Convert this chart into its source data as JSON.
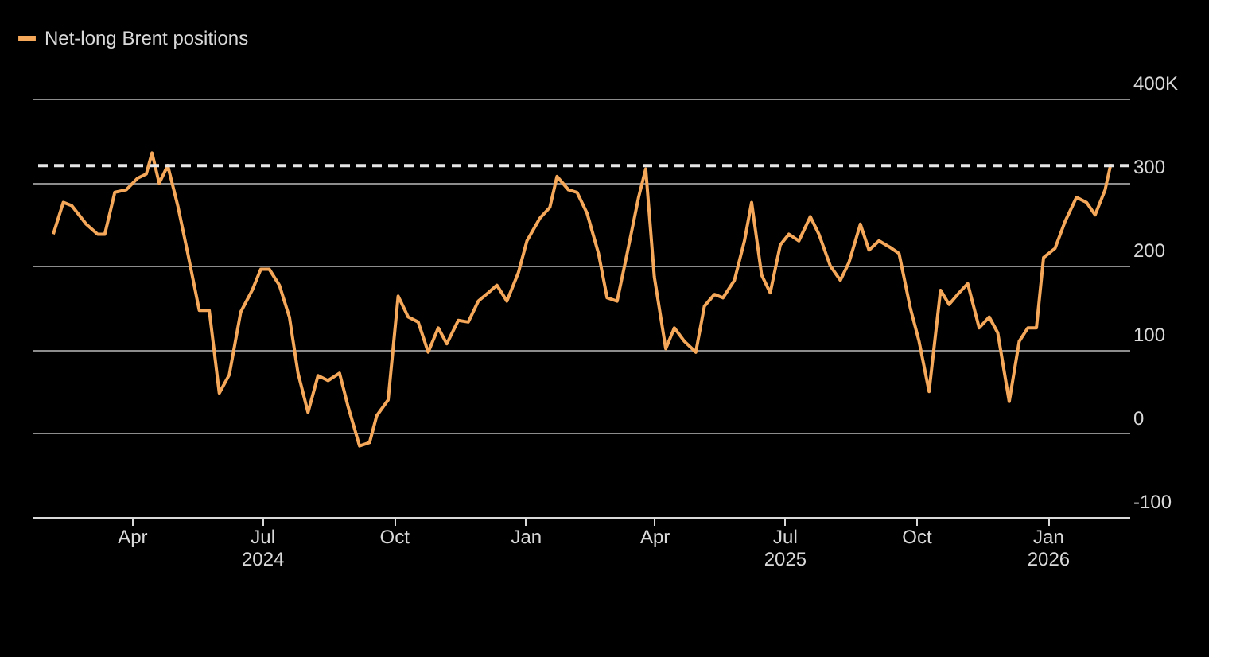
{
  "chart_data": {
    "type": "line",
    "x": [
      "2024-02-06",
      "2024-02-13",
      "2024-02-19",
      "2024-02-29",
      "2024-03-08",
      "2024-03-13",
      "2024-03-20",
      "2024-03-28",
      "2024-04-05",
      "2024-04-11",
      "2024-04-15",
      "2024-04-20",
      "2024-04-26",
      "2024-05-03",
      "2024-05-10",
      "2024-05-18",
      "2024-05-25",
      "2024-06-01",
      "2024-06-08",
      "2024-06-16",
      "2024-06-24",
      "2024-06-30",
      "2024-07-06",
      "2024-07-13",
      "2024-07-20",
      "2024-07-26",
      "2024-08-02",
      "2024-08-09",
      "2024-08-16",
      "2024-08-24",
      "2024-08-30",
      "2024-09-07",
      "2024-09-14",
      "2024-09-19",
      "2024-09-27",
      "2024-10-04",
      "2024-10-11",
      "2024-10-18",
      "2024-10-25",
      "2024-11-01",
      "2024-11-07",
      "2024-11-15",
      "2024-11-22",
      "2024-11-29",
      "2024-12-06",
      "2024-12-12",
      "2024-12-19",
      "2024-12-27",
      "2025-01-02",
      "2025-01-11",
      "2025-01-18",
      "2025-01-23",
      "2025-01-31",
      "2025-02-06",
      "2025-02-13",
      "2025-02-21",
      "2025-02-27",
      "2025-03-06",
      "2025-03-13",
      "2025-03-21",
      "2025-03-26",
      "2025-04-01",
      "2025-04-09",
      "2025-04-15",
      "2025-04-22",
      "2025-04-30",
      "2025-05-06",
      "2025-05-13",
      "2025-05-19",
      "2025-05-27",
      "2025-06-03",
      "2025-06-08",
      "2025-06-15",
      "2025-06-21",
      "2025-06-28",
      "2025-07-04",
      "2025-07-11",
      "2025-07-19",
      "2025-07-25",
      "2025-08-02",
      "2025-08-09",
      "2025-08-15",
      "2025-08-23",
      "2025-08-29",
      "2025-09-05",
      "2025-09-13",
      "2025-09-19",
      "2025-09-27",
      "2025-10-03",
      "2025-10-10",
      "2025-10-18",
      "2025-10-24",
      "2025-10-31",
      "2025-11-06",
      "2025-11-14",
      "2025-11-21",
      "2025-11-27",
      "2025-12-05",
      "2025-12-12",
      "2025-12-18",
      "2025-12-24",
      "2025-12-29",
      "2026-01-06",
      "2026-01-13",
      "2026-01-21",
      "2026-01-28",
      "2026-02-03",
      "2026-02-10",
      "2026-02-14"
    ],
    "series": [
      {
        "name": "Net-long Brent positions",
        "color": "#f5a85a",
        "values": [
          238,
          276,
          272,
          250,
          238,
          238,
          288,
          291,
          305,
          310,
          335,
          299,
          320,
          272,
          215,
          147,
          147,
          48,
          70,
          145,
          171,
          196,
          196,
          177,
          139,
          72,
          25,
          69,
          63,
          72,
          32,
          -15,
          -11,
          21,
          40,
          164,
          139,
          133,
          97,
          126,
          107,
          135,
          133,
          158,
          168,
          177,
          158,
          192,
          230,
          257,
          270,
          307,
          291,
          288,
          263,
          215,
          162,
          158,
          215,
          282,
          316,
          187,
          101,
          126,
          110,
          97,
          152,
          166,
          162,
          183,
          230,
          276,
          189,
          168,
          225,
          238,
          230,
          259,
          238,
          200,
          183,
          204,
          250,
          219,
          230,
          222,
          215,
          149,
          110,
          50,
          171,
          154,
          168,
          179,
          126,
          139,
          120,
          38,
          110,
          126,
          126,
          210,
          221,
          253,
          282,
          276,
          261,
          291,
          322
        ]
      }
    ],
    "xlim": [
      "2024-01-22",
      "2026-02-27"
    ],
    "xticks": [
      {
        "value": "2024-04-01",
        "label": "Apr"
      },
      {
        "value": "2024-07-01",
        "label": "Jul\n2024"
      },
      {
        "value": "2024-10-01",
        "label": "Oct"
      },
      {
        "value": "2025-01-01",
        "label": "Jan"
      },
      {
        "value": "2025-04-01",
        "label": "Apr"
      },
      {
        "value": "2025-07-01",
        "label": "Jul\n2025"
      },
      {
        "value": "2025-10-01",
        "label": "Oct"
      },
      {
        "value": "2026-01-01",
        "label": "Jan\n2026"
      }
    ],
    "ylim": [
      -100,
      400
    ],
    "yticks": [
      {
        "value": 400,
        "label": "400K"
      },
      {
        "value": 300,
        "label": "300"
      },
      {
        "value": 200,
        "label": "200"
      },
      {
        "value": 100,
        "label": "100"
      },
      {
        "value": 0,
        "label": "0"
      },
      {
        "value": -100,
        "label": "-100"
      }
    ],
    "ref_lines": [
      {
        "axis": "y",
        "value": 320,
        "color": "#e6e6e6",
        "line_style": "dashed"
      }
    ],
    "grid": "y",
    "legend": "top left",
    "line_style": "solid",
    "marker": "none"
  }
}
